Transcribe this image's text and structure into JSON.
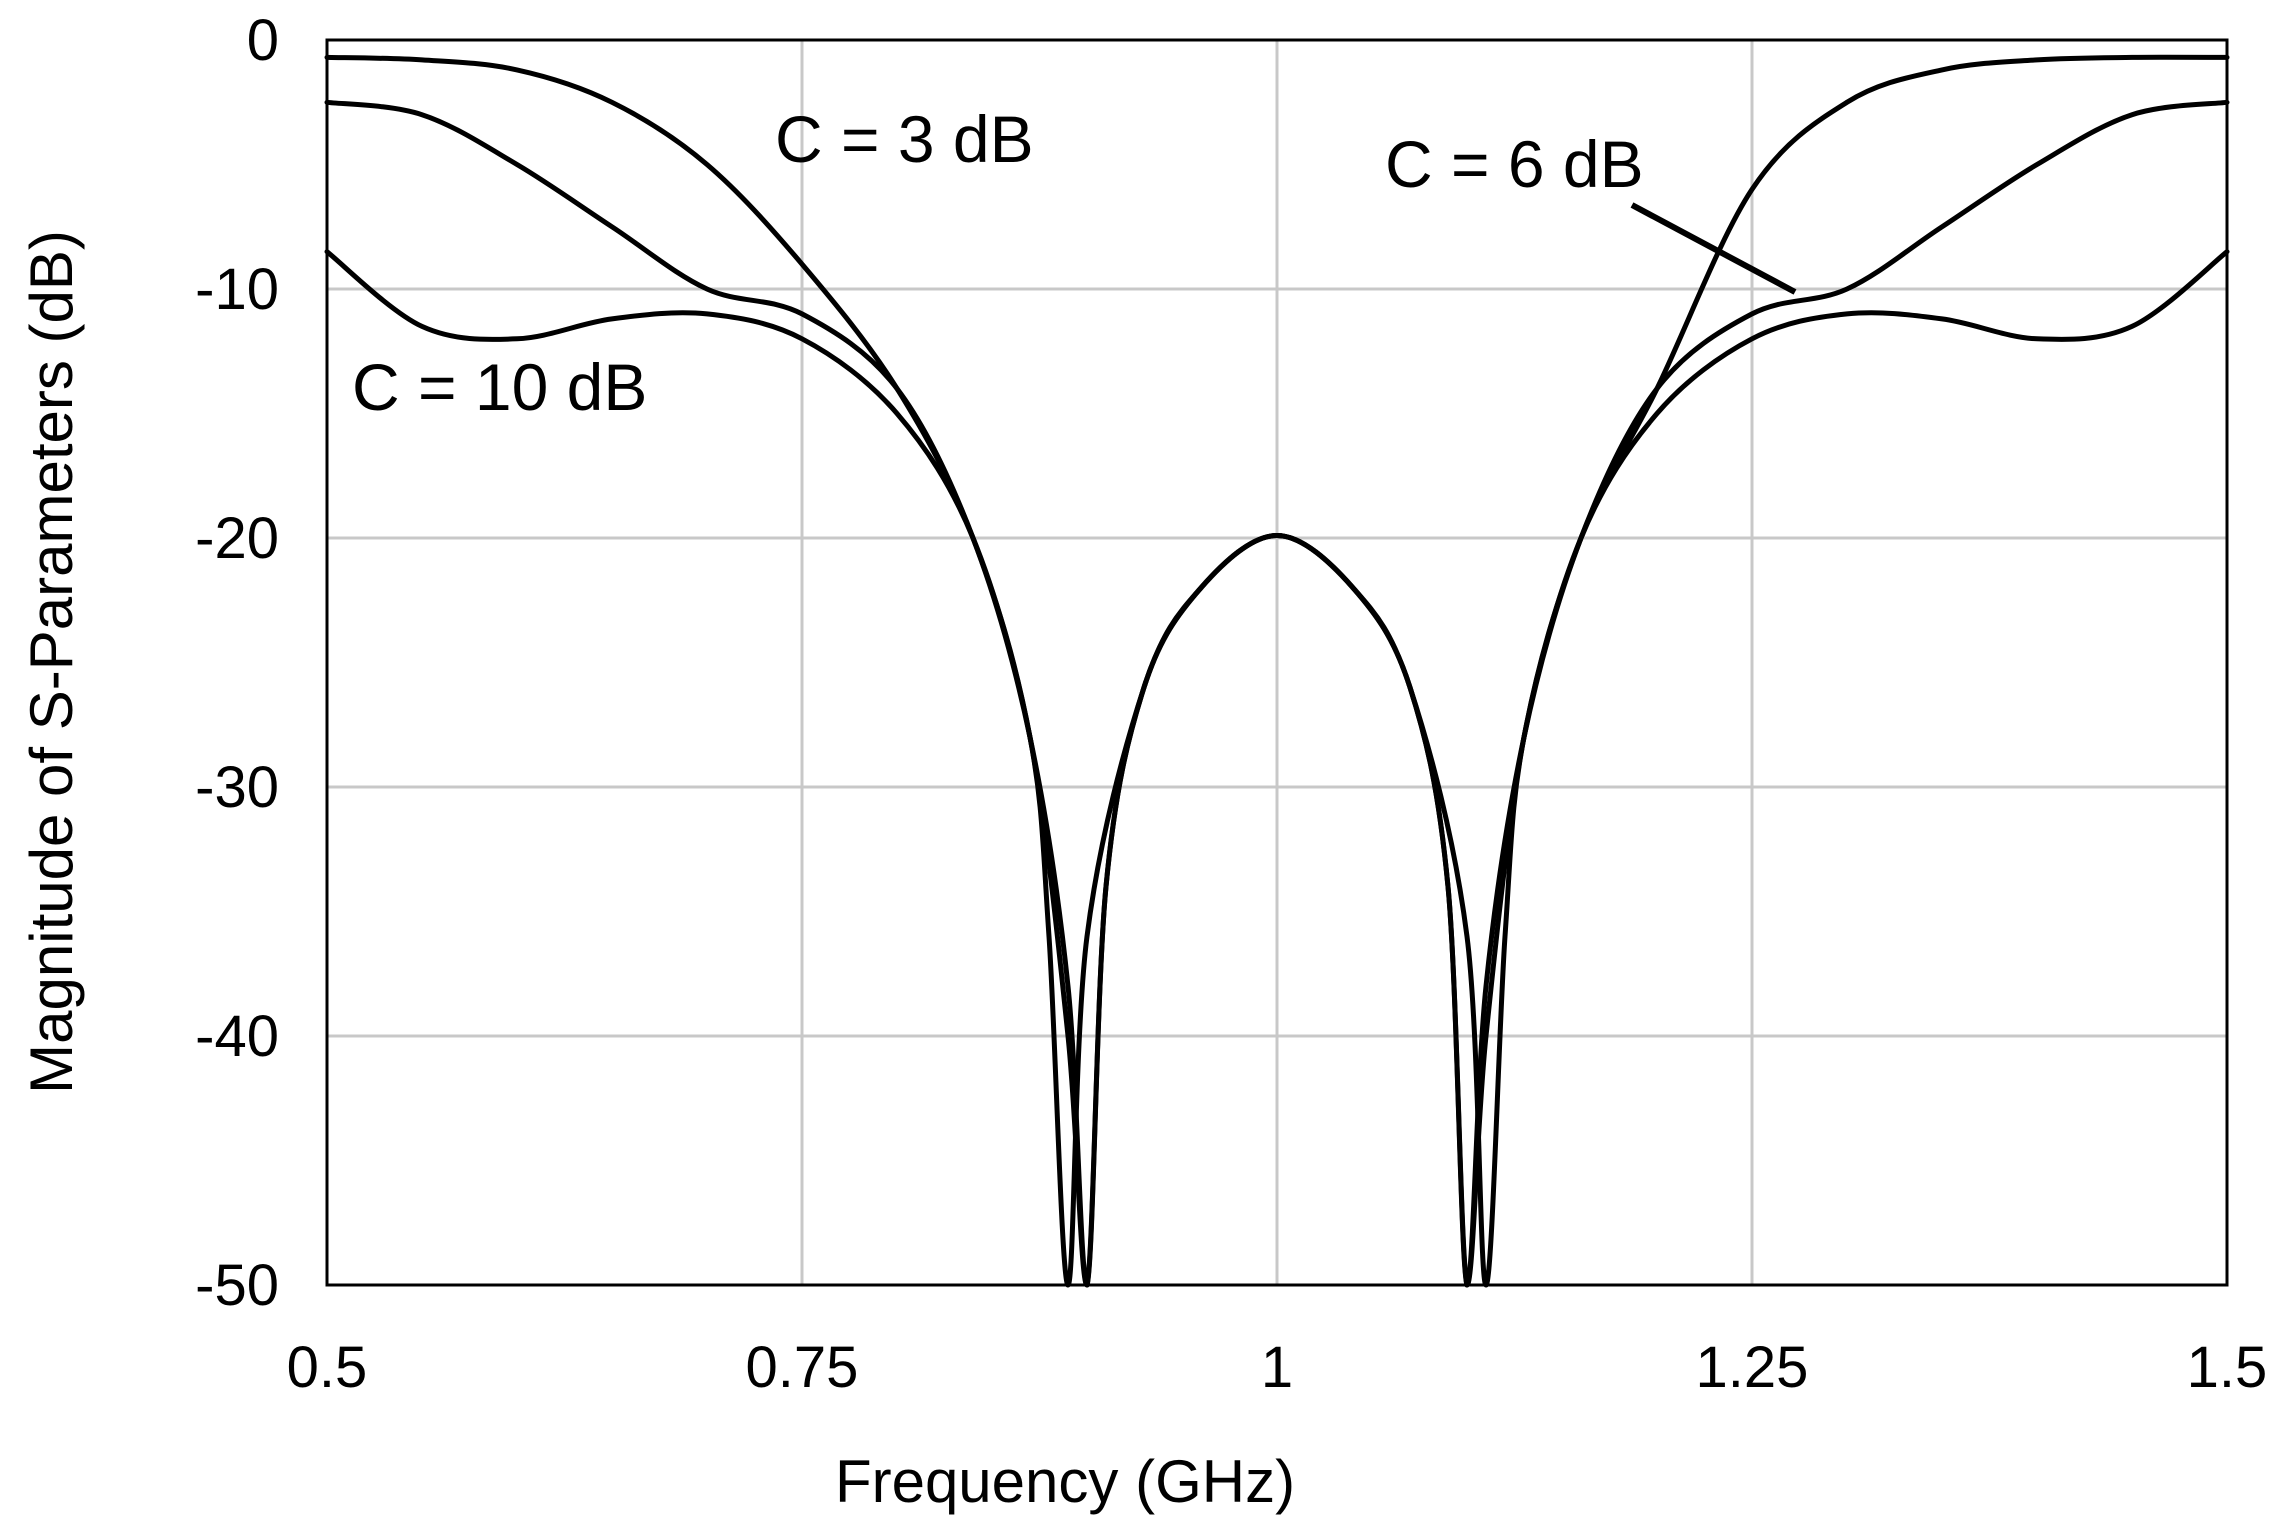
{
  "chart_data": {
    "type": "line",
    "title": "",
    "xlabel": "Frequency (GHz)",
    "ylabel": "Magnitude of S-Parameters (dB)",
    "xlim": [
      0.5,
      1.5
    ],
    "ylim": [
      -50,
      0
    ],
    "xticks": [
      0.5,
      0.75,
      1,
      1.25,
      1.5
    ],
    "xtick_labels": [
      "0.5",
      "0.75",
      "1",
      "1.25",
      "1.5"
    ],
    "yticks": [
      0,
      -10,
      -20,
      -30,
      -40,
      -50
    ],
    "ytick_labels": [
      "0",
      "-10",
      "-20",
      "-30",
      "-40",
      "-50"
    ],
    "grid": true,
    "legend": "none",
    "line_color": "#000000",
    "series": [
      {
        "label_ref": "c3",
        "x": [
          0.5,
          0.55,
          0.6,
          0.65,
          0.7,
          0.75,
          0.8,
          0.84,
          0.87,
          0.89,
          0.9,
          0.91,
          0.93,
          0.96,
          1.0,
          1.04,
          1.07,
          1.09,
          1.1,
          1.11,
          1.13,
          1.16,
          1.2,
          1.25,
          1.3,
          1.35,
          1.4,
          1.45,
          1.5
        ],
        "y": [
          -0.7,
          -0.8,
          -1.2,
          -2.5,
          -5.0,
          -9.0,
          -14.0,
          -20.0,
          -28.0,
          -38.0,
          -50.0,
          -34.0,
          -26.0,
          -22.0,
          -19.9,
          -22.0,
          -26.0,
          -34.0,
          -50.0,
          -38.0,
          -28.0,
          -20.0,
          -14.0,
          -6.0,
          -2.5,
          -1.2,
          -0.8,
          -0.7,
          -0.7
        ]
      },
      {
        "label_ref": "c6",
        "x": [
          0.5,
          0.55,
          0.6,
          0.65,
          0.7,
          0.75,
          0.8,
          0.84,
          0.87,
          0.89,
          0.9,
          0.91,
          0.93,
          0.96,
          1.0,
          1.04,
          1.07,
          1.09,
          1.1,
          1.11,
          1.13,
          1.16,
          1.2,
          1.25,
          1.3,
          1.35,
          1.4,
          1.45,
          1.5
        ],
        "y": [
          -2.5,
          -3.0,
          -5.0,
          -7.5,
          -10.0,
          -11.0,
          -14.0,
          -20.0,
          -28.0,
          -40.0,
          -50.0,
          -34.0,
          -26.0,
          -22.0,
          -19.9,
          -22.0,
          -26.0,
          -34.0,
          -50.0,
          -40.0,
          -28.0,
          -20.0,
          -14.0,
          -11.0,
          -10.0,
          -7.5,
          -5.0,
          -3.0,
          -2.5
        ]
      },
      {
        "label_ref": "c10",
        "x": [
          0.5,
          0.55,
          0.6,
          0.65,
          0.7,
          0.75,
          0.8,
          0.84,
          0.87,
          0.88,
          0.89,
          0.9,
          0.93,
          0.96,
          1.0,
          1.04,
          1.07,
          1.1,
          1.11,
          1.12,
          1.13,
          1.16,
          1.2,
          1.25,
          1.3,
          1.35,
          1.4,
          1.45,
          1.5
        ],
        "y": [
          -8.5,
          -11.5,
          -12.0,
          -11.2,
          -11.0,
          -12.0,
          -15.0,
          -20.0,
          -28.0,
          -36.0,
          -50.0,
          -36.0,
          -26.0,
          -22.0,
          -19.9,
          -22.0,
          -26.0,
          -36.0,
          -50.0,
          -36.0,
          -28.0,
          -20.0,
          -15.0,
          -12.0,
          -11.0,
          -11.2,
          -12.0,
          -11.5,
          -8.5
        ]
      }
    ],
    "annotations": [
      {
        "id": "c3",
        "text": "C =  3 dB"
      },
      {
        "id": "c6",
        "text": "C =  6 dB"
      },
      {
        "id": "c10",
        "text": "C =  10 dB"
      }
    ]
  }
}
